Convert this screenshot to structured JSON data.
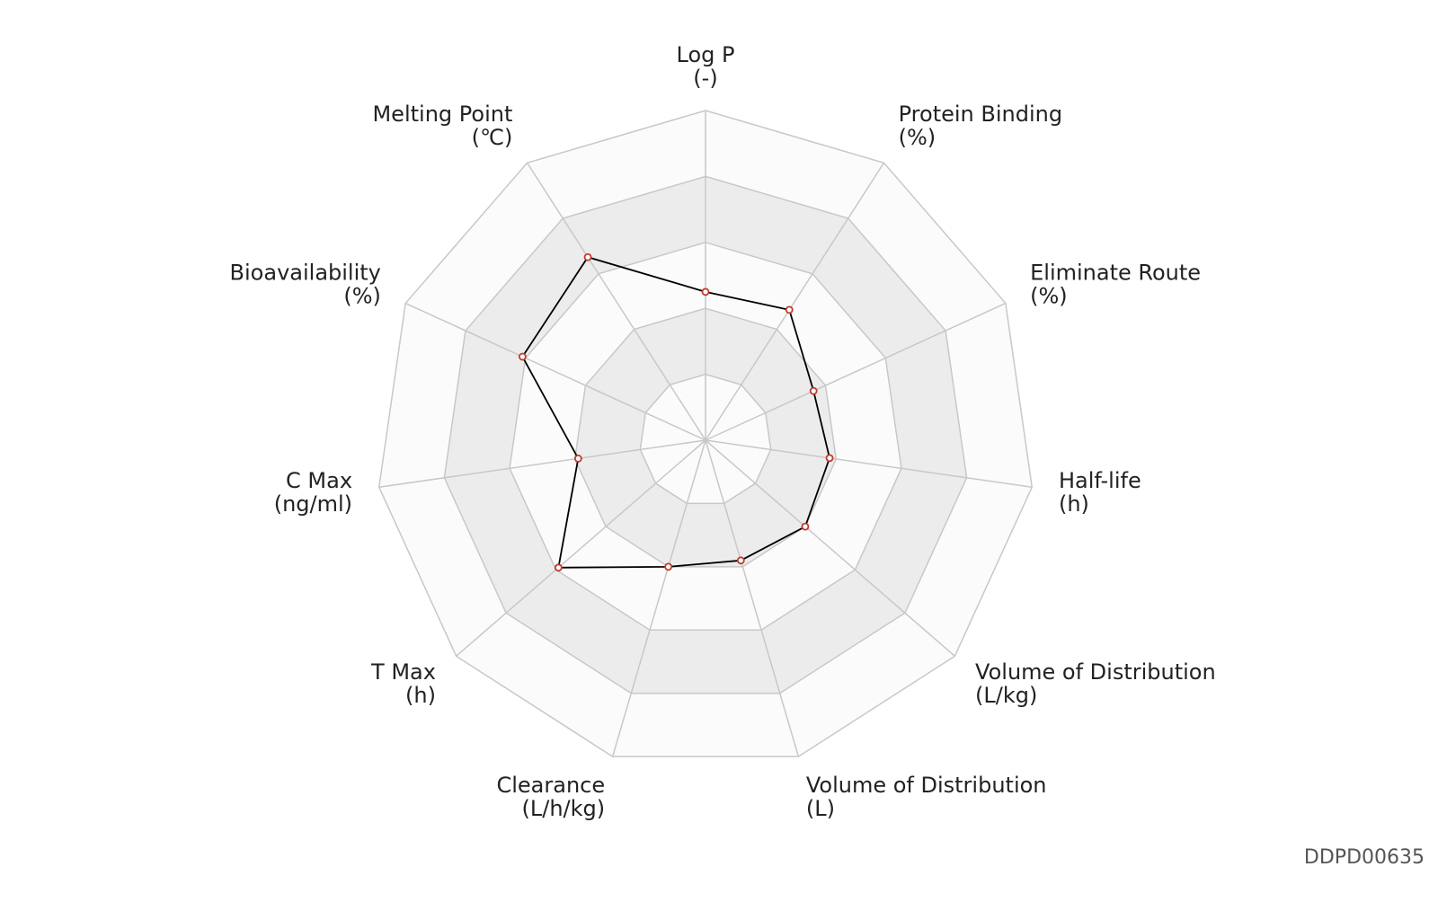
{
  "chart_data": {
    "type": "radar",
    "categories": [
      "Log P",
      "Protein Binding",
      "Eliminate Route",
      "Half-life",
      "Volume of Distribution",
      "Volume of Distribution",
      "Clearance",
      "T Max",
      "C Max",
      "Bioavailability",
      "Melting Point"
    ],
    "units": [
      "(-)",
      "(%)",
      "(%)",
      "(h)",
      "(L/kg)",
      "(L)",
      "(L/h/kg)",
      "(h)",
      "(ng/ml)",
      "(%)",
      "(℃)"
    ],
    "values": [
      2.25,
      2.35,
      1.8,
      1.9,
      2.0,
      1.9,
      2.0,
      2.95,
      1.95,
      3.05,
      3.3
    ],
    "color": "#000000",
    "marker_color": "#c0392b",
    "ylim": [
      0,
      5
    ],
    "yticks": [
      1,
      2,
      3,
      4,
      5
    ],
    "watermark": "DDPD00635"
  }
}
